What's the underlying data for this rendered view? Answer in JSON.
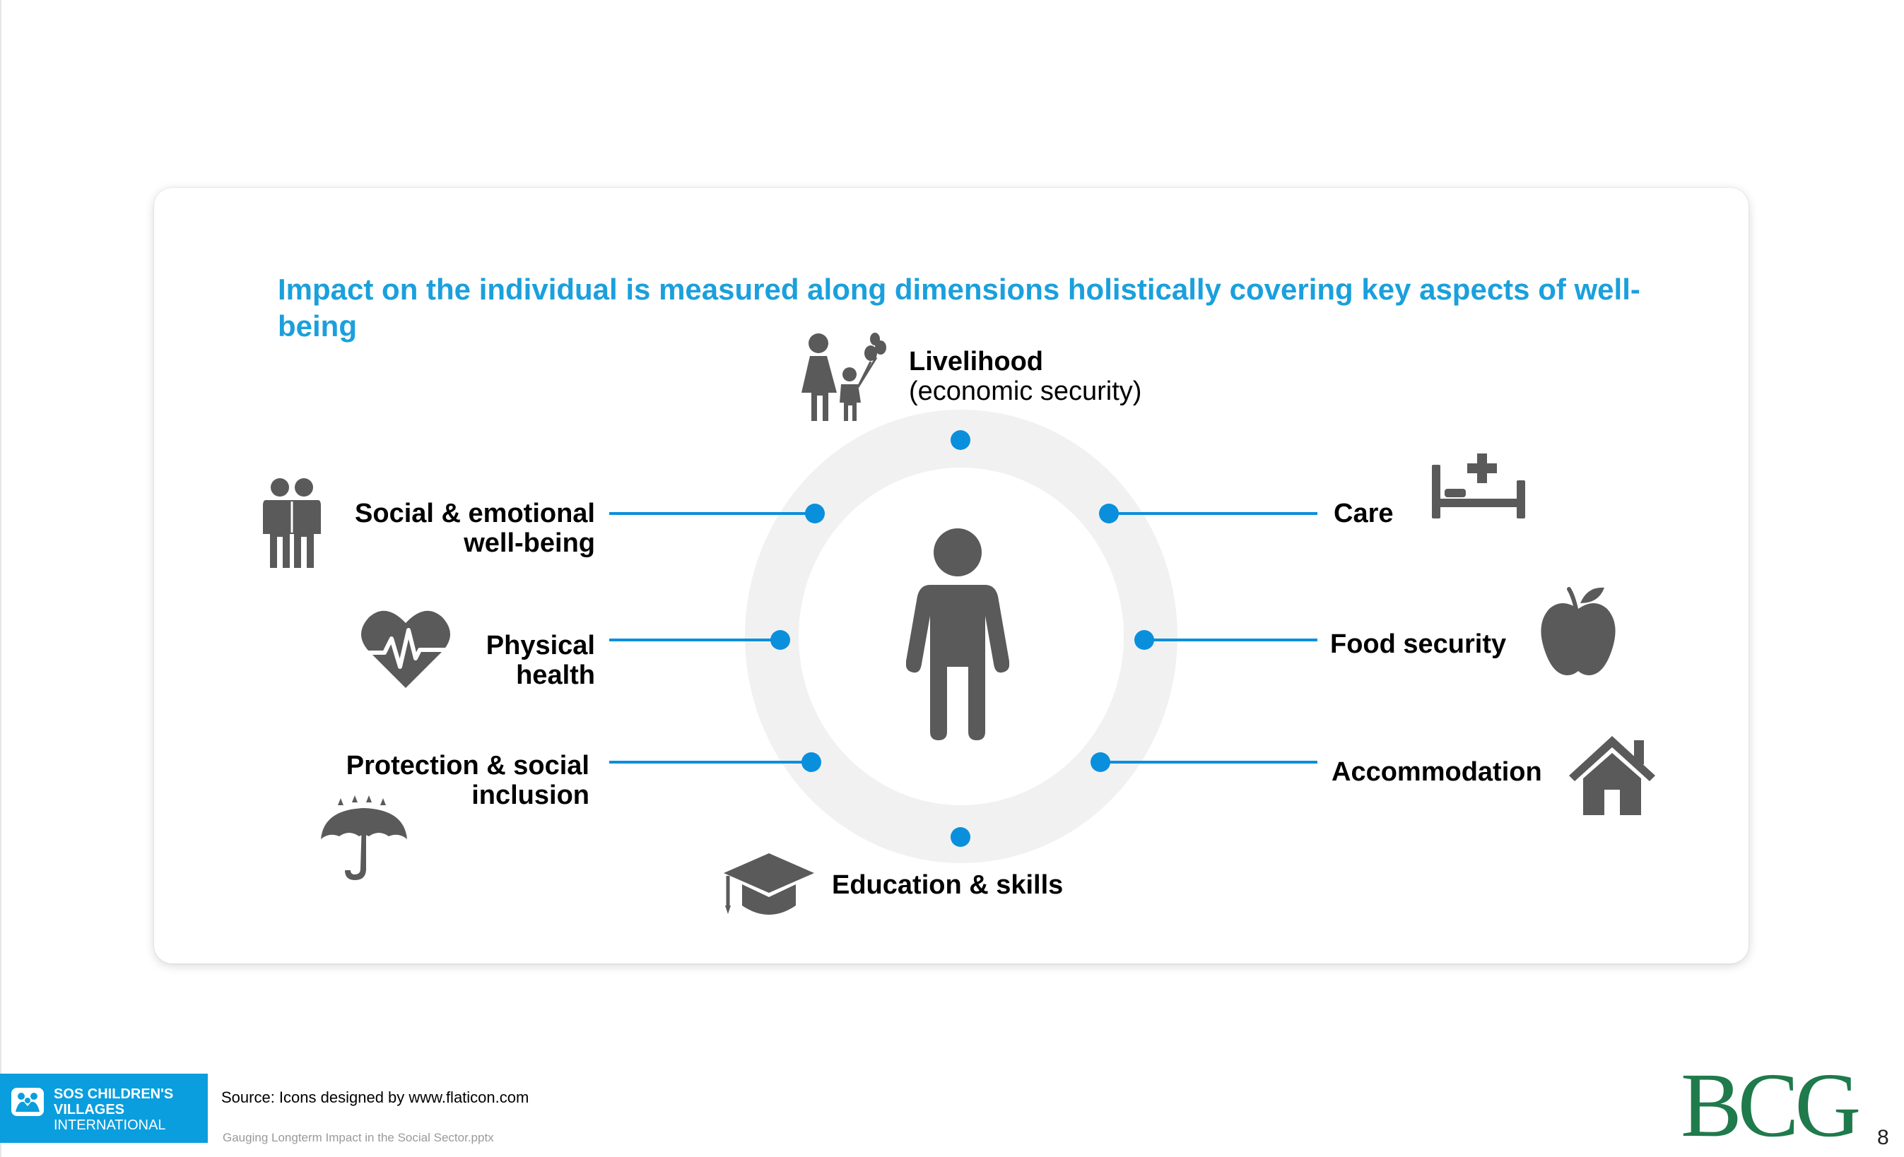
{
  "title": "Impact on the individual is measured along dimensions holistically covering key aspects of well-being",
  "dimensions": {
    "livelihood": {
      "label": "Livelihood",
      "sub": "(economic security)",
      "icon": "family-icon"
    },
    "care": {
      "label": "Care",
      "icon": "hospital-bed-icon"
    },
    "food": {
      "label": "Food security",
      "icon": "apple-icon"
    },
    "accommodation": {
      "label": "Accommodation",
      "icon": "house-icon"
    },
    "education": {
      "label": "Education & skills",
      "icon": "graduation-cap-icon"
    },
    "protection": {
      "label_1": "Protection & social",
      "label_2": "inclusion",
      "icon": "umbrella-icon"
    },
    "physical": {
      "label_1": "Physical",
      "label_2": "health",
      "icon": "heartbeat-icon"
    },
    "social": {
      "label_1": "Social & emotional",
      "label_2": "well-being",
      "icon": "couple-icon"
    }
  },
  "center_icon": "person-icon",
  "colors": {
    "accent": "#1aa0dc",
    "connector": "#0a8fdc",
    "icon": "#5a5a5a",
    "ring": "#f1f1f1",
    "bcg": "#1f7a4c"
  },
  "footer": {
    "source": "Source: Icons designed by www.flaticon.com",
    "filename": "Gauging Longterm Impact in the Social Sector.pptx",
    "logo_line_1": "SOS CHILDREN'S",
    "logo_line_2": "VILLAGES",
    "logo_line_3": "INTERNATIONAL",
    "brand": "BCG",
    "page_number": "8"
  }
}
